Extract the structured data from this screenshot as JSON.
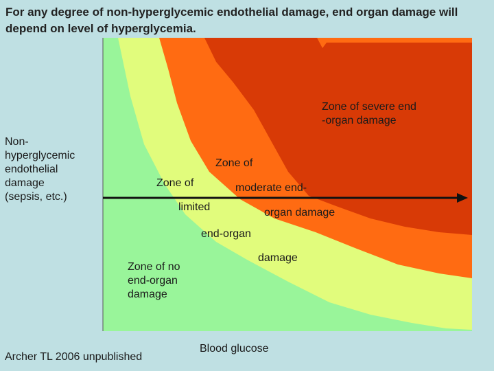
{
  "title": "For any degree of non-hyperglycemic endothelial damage, end organ damage will depend on level of hyperglycemia.",
  "zones": {
    "severe": "Zone of severe end\n-organ damage",
    "moderate_line1": "Zone of",
    "moderate_line2": "moderate end-",
    "moderate_line3": "organ damage",
    "limited_line1": "Zone of",
    "limited_line2": "limited",
    "limited_line3": "end-organ",
    "limited_line4": "damage",
    "none": "Zone of no\nend-organ\ndamage"
  },
  "y_axis_label": "Non-\nhyperglycemic\nendothelial\ndamage\n(sepsis, etc.)",
  "x_axis_label": "Blood glucose",
  "citation": "Archer TL 2006 unpublished",
  "colors": {
    "background": "#bfe0e3",
    "no_damage": "#99f59a",
    "limited": "#e1fc7c",
    "moderate": "#ff6b12",
    "severe": "#d83a06"
  }
}
